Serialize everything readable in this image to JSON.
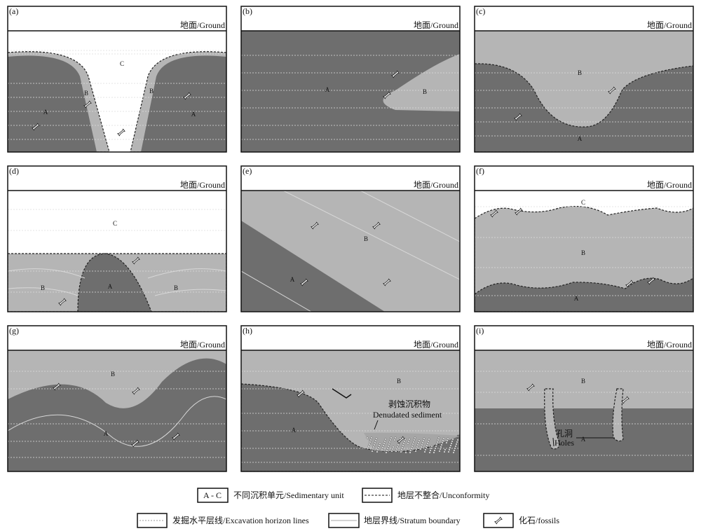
{
  "panels": [
    {
      "label": "(a)",
      "ground": "地面/Ground",
      "units": [
        "C",
        "B",
        "B",
        "A",
        "A"
      ]
    },
    {
      "label": "(b)",
      "ground": "地面/Ground",
      "units": [
        "A",
        "B"
      ]
    },
    {
      "label": "(c)",
      "ground": "地面/Ground",
      "units": [
        "B",
        "A"
      ]
    },
    {
      "label": "(d)",
      "ground": "地面/Ground",
      "units": [
        "C",
        "A",
        "B",
        "B"
      ]
    },
    {
      "label": "(e)",
      "ground": "地面/Ground",
      "units": [
        "B",
        "A"
      ]
    },
    {
      "label": "(f)",
      "ground": "地面/Ground",
      "units": [
        "C",
        "B",
        "A"
      ]
    },
    {
      "label": "(g)",
      "ground": "地面/Ground",
      "units": [
        "B",
        "A"
      ]
    },
    {
      "label": "(h)",
      "ground": "地面/Ground",
      "units": [
        "B",
        "A"
      ],
      "notes": [
        "剥蚀沉积物",
        "Denudated sediment"
      ]
    },
    {
      "label": "(i)",
      "ground": "地面/Ground",
      "units": [
        "B",
        "A"
      ],
      "notes": [
        "孔洞",
        "Holes"
      ]
    }
  ],
  "legend": [
    {
      "symbol": "A - C",
      "text": "不同沉积单元/Sedimentary unit"
    },
    {
      "text": "地层不整合/Unconformity"
    },
    {
      "text": "发掘水平层线/Excavation horizon lines"
    },
    {
      "text": "地层界线/Stratum boundary"
    },
    {
      "text": "化石/fossils"
    }
  ]
}
